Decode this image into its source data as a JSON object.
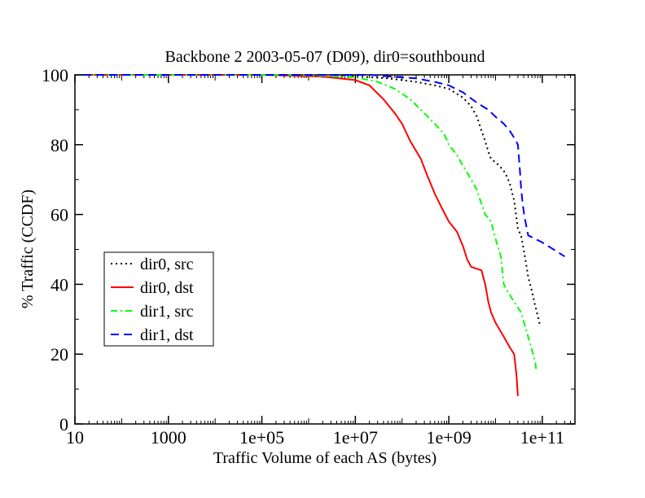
{
  "chart_data": {
    "type": "line",
    "title": "Backbone 2 2003-05-07 (D09), dir0=southbound",
    "xlabel": "Traffic Volume of each AS (bytes)",
    "ylabel": "% Traffic (CCDF)",
    "x_scale": "log",
    "xlim": [
      10,
      500000000000
    ],
    "ylim": [
      0,
      100
    ],
    "x_ticks": [
      {
        "value": 10,
        "label": "10"
      },
      {
        "value": 1000,
        "label": "1000"
      },
      {
        "value": 100000,
        "label": "1e+05"
      },
      {
        "value": 10000000,
        "label": "1e+07"
      },
      {
        "value": 1000000000,
        "label": "1e+09"
      },
      {
        "value": 100000000000,
        "label": "1e+11"
      }
    ],
    "y_ticks": [
      0,
      20,
      40,
      60,
      80,
      100
    ],
    "grid": false,
    "legend_position": "left-middle",
    "series": [
      {
        "name": "dir0, src",
        "color": "#000000",
        "dash": "dotted",
        "points": [
          [
            15,
            100
          ],
          [
            100000.0,
            100
          ],
          [
            1000000.0,
            99.9
          ],
          [
            10000000.0,
            99.6
          ],
          [
            50000000.0,
            99
          ],
          [
            200000000.0,
            98
          ],
          [
            500000000.0,
            97
          ],
          [
            1000000000.0,
            96
          ],
          [
            2000000000.0,
            93.5
          ],
          [
            3000000000.0,
            91
          ],
          [
            4000000000.0,
            88
          ],
          [
            5000000000.0,
            84
          ],
          [
            6000000000.0,
            81
          ],
          [
            7000000000.0,
            78
          ],
          [
            8000000000.0,
            76
          ],
          [
            12000000000.0,
            74
          ],
          [
            16000000000.0,
            72
          ],
          [
            20000000000.0,
            69
          ],
          [
            25000000000.0,
            64
          ],
          [
            30000000000.0,
            56
          ],
          [
            35000000000.0,
            54
          ],
          [
            40000000000.0,
            50
          ],
          [
            45000000000.0,
            46
          ],
          [
            50000000000.0,
            42
          ],
          [
            60000000000.0,
            38
          ],
          [
            70000000000.0,
            34
          ],
          [
            80000000000.0,
            31
          ],
          [
            90000000000.0,
            28
          ]
        ]
      },
      {
        "name": "dir0, dst",
        "color": "#ff0000",
        "dash": "solid",
        "points": [
          [
            15,
            100
          ],
          [
            100000.0,
            100
          ],
          [
            2000000.0,
            99.5
          ],
          [
            10000000.0,
            98.5
          ],
          [
            20000000.0,
            97
          ],
          [
            40000000.0,
            93
          ],
          [
            70000000.0,
            89
          ],
          [
            100000000.0,
            86
          ],
          [
            150000000.0,
            81
          ],
          [
            250000000.0,
            76
          ],
          [
            350000000.0,
            71
          ],
          [
            500000000.0,
            66
          ],
          [
            700000000.0,
            62
          ],
          [
            1000000000.0,
            58
          ],
          [
            1500000000.0,
            55
          ],
          [
            2000000000.0,
            51
          ],
          [
            2500000000.0,
            47
          ],
          [
            3000000000.0,
            45
          ],
          [
            5000000000.0,
            44
          ],
          [
            6000000000.0,
            40
          ],
          [
            7000000000.0,
            35
          ],
          [
            8000000000.0,
            32
          ],
          [
            10000000000.0,
            29
          ],
          [
            15000000000.0,
            25
          ],
          [
            20000000000.0,
            22
          ],
          [
            25000000000.0,
            20
          ],
          [
            28000000000.0,
            14
          ],
          [
            30000000000.0,
            8
          ]
        ]
      },
      {
        "name": "dir1, src",
        "color": "#00ff00",
        "dash": "dash-dot",
        "points": [
          [
            15,
            100
          ],
          [
            100000.0,
            100
          ],
          [
            1000000.0,
            99.9
          ],
          [
            10000000.0,
            99.3
          ],
          [
            30000000.0,
            98
          ],
          [
            70000000.0,
            96
          ],
          [
            150000000.0,
            93
          ],
          [
            300000000.0,
            89
          ],
          [
            500000000.0,
            86
          ],
          [
            800000000.0,
            83
          ],
          [
            1000000000.0,
            80
          ],
          [
            1500000000.0,
            77
          ],
          [
            2000000000.0,
            74
          ],
          [
            3000000000.0,
            70
          ],
          [
            4000000000.0,
            67
          ],
          [
            5000000000.0,
            63
          ],
          [
            6000000000.0,
            60
          ],
          [
            8000000000.0,
            58
          ],
          [
            10000000000.0,
            53
          ],
          [
            13000000000.0,
            48
          ],
          [
            15000000000.0,
            40
          ],
          [
            18000000000.0,
            38
          ],
          [
            25000000000.0,
            35
          ],
          [
            35000000000.0,
            32
          ],
          [
            45000000000.0,
            27
          ],
          [
            55000000000.0,
            23
          ],
          [
            70000000000.0,
            18
          ],
          [
            75000000000.0,
            15
          ]
        ]
      },
      {
        "name": "dir1, dst",
        "color": "#0000ff",
        "dash": "dashed",
        "points": [
          [
            15,
            100
          ],
          [
            1000000.0,
            100
          ],
          [
            20000000.0,
            100
          ],
          [
            60000000.0,
            99.5
          ],
          [
            200000000.0,
            99
          ],
          [
            500000000.0,
            98
          ],
          [
            1000000000.0,
            97
          ],
          [
            2000000000.0,
            95
          ],
          [
            4000000000.0,
            92
          ],
          [
            7000000000.0,
            90
          ],
          [
            10000000000.0,
            88
          ],
          [
            15000000000.0,
            86
          ],
          [
            20000000000.0,
            84
          ],
          [
            25000000000.0,
            82
          ],
          [
            30000000000.0,
            80
          ],
          [
            33000000000.0,
            73
          ],
          [
            35000000000.0,
            68
          ],
          [
            38000000000.0,
            63
          ],
          [
            42000000000.0,
            59
          ],
          [
            50000000000.0,
            54
          ],
          [
            100000000000.0,
            52
          ],
          [
            300000000000.0,
            48
          ]
        ]
      }
    ]
  }
}
